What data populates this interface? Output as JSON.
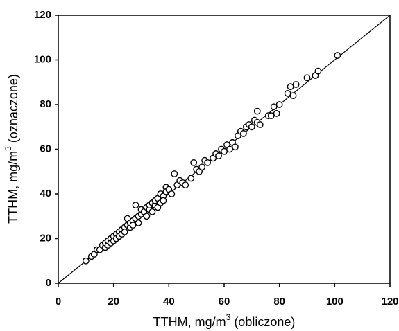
{
  "chart_data": {
    "type": "scatter",
    "xlabel": [
      "TTHM, mg/m",
      "3",
      " (obliczone)"
    ],
    "ylabel": [
      "TTHM, mg/m",
      "3",
      " (oznaczone)"
    ],
    "x": [
      10,
      12,
      13,
      14,
      15,
      16,
      17,
      17,
      18,
      18,
      19,
      19,
      20,
      20,
      21,
      21,
      22,
      22,
      23,
      23,
      24,
      24,
      25,
      25,
      26,
      26,
      27,
      27,
      28,
      28,
      29,
      29,
      30,
      30,
      31,
      32,
      32,
      33,
      33,
      34,
      34,
      35,
      35,
      36,
      36,
      37,
      37,
      38,
      38,
      39,
      39,
      40,
      41,
      42,
      43,
      44,
      45,
      46,
      48,
      49,
      50,
      51,
      52,
      53,
      54,
      56,
      57,
      58,
      59,
      60,
      61,
      62,
      63,
      64,
      65,
      66,
      67,
      68,
      69,
      70,
      71,
      72,
      72,
      73,
      76,
      77,
      78,
      79,
      80,
      83,
      84,
      85,
      86,
      90,
      93,
      94,
      101
    ],
    "values": [
      10,
      12,
      13,
      15,
      15,
      17,
      16,
      18,
      17,
      19,
      20,
      18,
      21,
      19,
      22,
      20,
      23,
      21,
      24,
      22,
      25,
      23,
      26,
      29,
      25,
      27,
      28,
      26,
      35,
      29,
      30,
      27,
      31,
      33,
      32,
      34,
      30,
      33,
      35,
      36,
      32,
      35,
      37,
      38,
      34,
      36,
      40,
      39,
      37,
      43,
      41,
      42,
      40,
      49,
      44,
      46,
      45,
      44,
      47,
      54,
      51,
      50,
      52,
      55,
      54,
      56,
      58,
      57,
      60,
      59,
      62,
      60,
      63,
      61,
      66,
      68,
      67,
      70,
      71,
      70,
      73,
      77,
      72,
      71,
      75,
      75,
      79,
      76,
      80,
      85,
      88,
      84,
      89,
      92,
      93,
      95,
      102
    ],
    "color": "#000000",
    "xlim": [
      0,
      120
    ],
    "ylim": [
      0,
      120
    ],
    "xticks": [
      0,
      20,
      40,
      60,
      80,
      100,
      120
    ],
    "yticks": [
      0,
      20,
      40,
      60,
      80,
      100,
      120
    ],
    "grid": false
  }
}
